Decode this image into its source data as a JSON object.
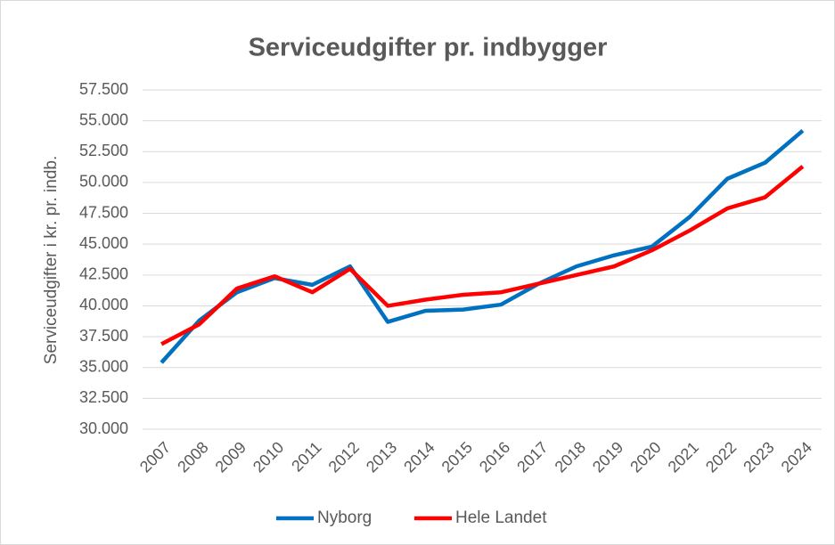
{
  "chart_data": {
    "type": "line",
    "title": "Serviceudgifter pr. indbygger",
    "y_label": "Serviceudgifter i kr. pr. indb.",
    "categories": [
      "2007",
      "2008",
      "2009",
      "2010",
      "2011",
      "2012",
      "2013",
      "2014",
      "2015",
      "2016",
      "2017",
      "2018",
      "2019",
      "2020",
      "2021",
      "2022",
      "2023",
      "2024"
    ],
    "series": [
      {
        "name": "Nyborg",
        "color": "#0070c0",
        "values": [
          35400,
          38800,
          41100,
          42250,
          41700,
          43200,
          38700,
          39600,
          39700,
          40100,
          41800,
          43200,
          44100,
          44800,
          47200,
          50300,
          51600,
          54200
        ]
      },
      {
        "name": "Hele Landet",
        "color": "#ff0000",
        "values": [
          36900,
          38500,
          41400,
          42400,
          41100,
          43000,
          40000,
          40500,
          40900,
          41100,
          41800,
          42500,
          43200,
          44500,
          46100,
          47900,
          48800,
          51300
        ]
      }
    ],
    "ylim": [
      30000,
      57500
    ],
    "yticks": [
      {
        "value": 30000,
        "label": "30.000"
      },
      {
        "value": 32500,
        "label": "32.500"
      },
      {
        "value": 35000,
        "label": "35.000"
      },
      {
        "value": 37500,
        "label": "37.500"
      },
      {
        "value": 40000,
        "label": "40.000"
      },
      {
        "value": 42500,
        "label": "42.500"
      },
      {
        "value": 45000,
        "label": "45.000"
      },
      {
        "value": 47500,
        "label": "47.500"
      },
      {
        "value": 50000,
        "label": "50.000"
      },
      {
        "value": 52500,
        "label": "52.500"
      },
      {
        "value": 55000,
        "label": "55.000"
      },
      {
        "value": 57500,
        "label": "57.500"
      }
    ],
    "grid": true,
    "legend": "bottom"
  }
}
